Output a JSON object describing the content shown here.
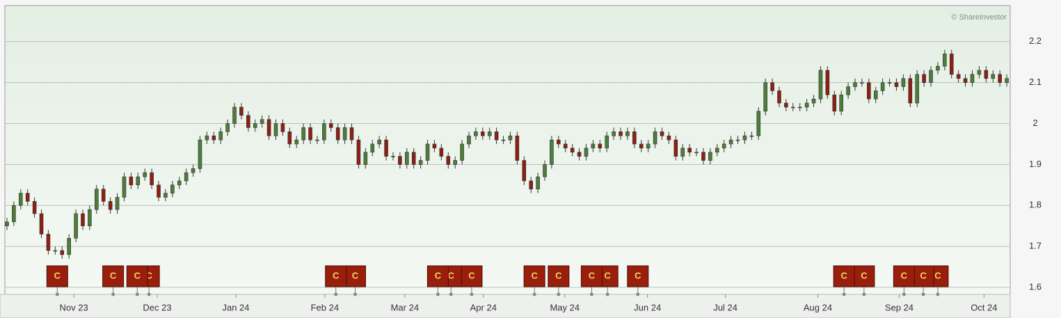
{
  "chart_data": {
    "type": "candlestick",
    "annotation": "© ShareInvestor",
    "up_color": "#4e7d3a",
    "down_color": "#8e1f14",
    "ylim": [
      1.583,
      2.288
    ],
    "yticks": [
      1.6,
      1.7,
      1.8,
      1.9,
      2,
      2.1,
      2.2
    ],
    "grid": true,
    "xlim": [
      -0.3,
      145.5
    ],
    "xticks": [
      {
        "value": 9.7,
        "label": "Nov 23"
      },
      {
        "value": 21.8,
        "label": "Dec 23"
      },
      {
        "value": 33.2,
        "label": "Jan 24"
      },
      {
        "value": 46.1,
        "label": "Feb 24"
      },
      {
        "value": 57.7,
        "label": "Mar 24"
      },
      {
        "value": 69.1,
        "label": "Apr 24"
      },
      {
        "value": 80.9,
        "label": "May 24"
      },
      {
        "value": 92.9,
        "label": "Jun 24"
      },
      {
        "value": 104.2,
        "label": "Jul 24"
      },
      {
        "value": 117.6,
        "label": "Aug 24"
      },
      {
        "value": 129.4,
        "label": "Sep 24"
      },
      {
        "value": 141.7,
        "label": "Oct 24"
      }
    ],
    "open": [
      1.75,
      1.76,
      1.8,
      1.83,
      1.81,
      1.78,
      1.73,
      1.69,
      1.69,
      1.68,
      1.72,
      1.78,
      1.75,
      1.79,
      1.84,
      1.81,
      1.79,
      1.82,
      1.87,
      1.85,
      1.87,
      1.88,
      1.85,
      1.82,
      1.83,
      1.85,
      1.86,
      1.88,
      1.89,
      1.96,
      1.97,
      1.96,
      1.98,
      2.0,
      2.04,
      2.02,
      1.99,
      2.0,
      2.01,
      1.97,
      2.0,
      1.98,
      1.95,
      1.96,
      1.99,
      1.96,
      1.96,
      2.0,
      1.99,
      1.96,
      1.99,
      1.96,
      1.9,
      1.93,
      1.95,
      1.96,
      1.92,
      1.92,
      1.9,
      1.93,
      1.9,
      1.91,
      1.95,
      1.94,
      1.92,
      1.9,
      1.91,
      1.95,
      1.97,
      1.98,
      1.97,
      1.98,
      1.96,
      1.96,
      1.97,
      1.91,
      1.86,
      1.84,
      1.87,
      1.9,
      1.96,
      1.95,
      1.94,
      1.93,
      1.92,
      1.94,
      1.95,
      1.94,
      1.97,
      1.98,
      1.97,
      1.98,
      1.95,
      1.94,
      1.95,
      1.98,
      1.97,
      1.96,
      1.92,
      1.94,
      1.93,
      1.93,
      1.91,
      1.93,
      1.94,
      1.95,
      1.96,
      1.96,
      1.97,
      1.97,
      2.03,
      2.1,
      2.08,
      2.05,
      2.04,
      2.04,
      2.04,
      2.05,
      2.06,
      2.13,
      2.07,
      2.03,
      2.07,
      2.09,
      2.1,
      2.1,
      2.06,
      2.08,
      2.1,
      2.1,
      2.09,
      2.11,
      2.05,
      2.12,
      2.1,
      2.13,
      2.14,
      2.17,
      2.12,
      2.11,
      2.1,
      2.12,
      2.13,
      2.11,
      2.12,
      2.1
    ],
    "high": [
      1.77,
      1.81,
      1.84,
      1.84,
      1.82,
      1.79,
      1.74,
      1.7,
      1.7,
      1.73,
      1.79,
      1.79,
      1.8,
      1.85,
      1.85,
      1.82,
      1.83,
      1.88,
      1.88,
      1.88,
      1.89,
      1.89,
      1.86,
      1.84,
      1.86,
      1.87,
      1.89,
      1.9,
      1.97,
      1.98,
      1.98,
      1.99,
      2.01,
      2.05,
      2.05,
      2.03,
      2.01,
      2.02,
      2.02,
      2.01,
      2.01,
      1.99,
      1.97,
      2.0,
      2.0,
      1.97,
      2.01,
      2.01,
      2.0,
      2.0,
      2.0,
      1.97,
      1.94,
      1.96,
      1.97,
      1.97,
      1.93,
      1.93,
      1.94,
      1.94,
      1.92,
      1.96,
      1.96,
      1.95,
      1.93,
      1.92,
      1.96,
      1.98,
      1.99,
      1.99,
      1.99,
      1.99,
      1.97,
      1.98,
      1.98,
      1.92,
      1.87,
      1.88,
      1.91,
      1.97,
      1.97,
      1.96,
      1.95,
      1.94,
      1.95,
      1.96,
      1.96,
      1.98,
      1.99,
      1.99,
      1.99,
      1.99,
      1.96,
      1.96,
      1.99,
      1.99,
      1.98,
      1.97,
      1.95,
      1.95,
      1.94,
      1.94,
      1.94,
      1.95,
      1.96,
      1.97,
      1.97,
      1.98,
      1.98,
      2.04,
      2.11,
      2.11,
      2.09,
      2.06,
      2.05,
      2.05,
      2.06,
      2.07,
      2.14,
      2.14,
      2.08,
      2.08,
      2.1,
      2.11,
      2.11,
      2.11,
      2.09,
      2.11,
      2.11,
      2.11,
      2.12,
      2.12,
      2.13,
      2.13,
      2.14,
      2.15,
      2.18,
      2.18,
      2.13,
      2.12,
      2.13,
      2.14,
      2.14,
      2.13,
      2.13,
      2.12
    ],
    "low": [
      1.74,
      1.75,
      1.79,
      1.8,
      1.77,
      1.72,
      1.68,
      1.68,
      1.67,
      1.67,
      1.71,
      1.74,
      1.74,
      1.78,
      1.8,
      1.78,
      1.78,
      1.81,
      1.84,
      1.84,
      1.86,
      1.84,
      1.81,
      1.81,
      1.82,
      1.84,
      1.85,
      1.87,
      1.88,
      1.95,
      1.95,
      1.95,
      1.97,
      1.99,
      2.01,
      1.98,
      1.98,
      1.99,
      1.96,
      1.96,
      1.97,
      1.94,
      1.94,
      1.95,
      1.95,
      1.95,
      1.95,
      1.98,
      1.95,
      1.95,
      1.95,
      1.89,
      1.89,
      1.92,
      1.94,
      1.91,
      1.91,
      1.89,
      1.89,
      1.89,
      1.89,
      1.9,
      1.93,
      1.91,
      1.89,
      1.89,
      1.9,
      1.94,
      1.96,
      1.96,
      1.96,
      1.95,
      1.95,
      1.95,
      1.9,
      1.85,
      1.83,
      1.83,
      1.86,
      1.89,
      1.94,
      1.93,
      1.92,
      1.91,
      1.91,
      1.93,
      1.93,
      1.93,
      1.96,
      1.96,
      1.96,
      1.94,
      1.93,
      1.93,
      1.94,
      1.96,
      1.95,
      1.91,
      1.91,
      1.92,
      1.92,
      1.9,
      1.9,
      1.92,
      1.93,
      1.94,
      1.95,
      1.95,
      1.96,
      1.96,
      2.02,
      2.07,
      2.04,
      2.03,
      2.03,
      2.03,
      2.03,
      2.04,
      2.05,
      2.06,
      2.02,
      2.02,
      2.06,
      2.08,
      2.09,
      2.05,
      2.05,
      2.07,
      2.09,
      2.08,
      2.08,
      2.04,
      2.04,
      2.09,
      2.09,
      2.12,
      2.13,
      2.11,
      2.1,
      2.09,
      2.09,
      2.11,
      2.1,
      2.1,
      2.09,
      2.09
    ],
    "close": [
      1.76,
      1.8,
      1.83,
      1.81,
      1.78,
      1.73,
      1.69,
      1.69,
      1.68,
      1.72,
      1.78,
      1.75,
      1.79,
      1.84,
      1.81,
      1.79,
      1.82,
      1.87,
      1.85,
      1.87,
      1.88,
      1.85,
      1.82,
      1.83,
      1.85,
      1.86,
      1.88,
      1.89,
      1.96,
      1.97,
      1.96,
      1.98,
      2.0,
      2.04,
      2.02,
      1.99,
      2.0,
      2.01,
      1.97,
      2.0,
      1.98,
      1.95,
      1.96,
      1.99,
      1.96,
      1.96,
      2.0,
      1.99,
      1.96,
      1.99,
      1.96,
      1.9,
      1.93,
      1.95,
      1.96,
      1.92,
      1.92,
      1.9,
      1.93,
      1.9,
      1.91,
      1.95,
      1.94,
      1.92,
      1.9,
      1.91,
      1.95,
      1.97,
      1.98,
      1.97,
      1.98,
      1.96,
      1.96,
      1.97,
      1.91,
      1.86,
      1.84,
      1.87,
      1.9,
      1.96,
      1.95,
      1.94,
      1.93,
      1.92,
      1.94,
      1.95,
      1.94,
      1.97,
      1.98,
      1.97,
      1.98,
      1.95,
      1.94,
      1.95,
      1.98,
      1.97,
      1.96,
      1.92,
      1.94,
      1.93,
      1.93,
      1.91,
      1.93,
      1.94,
      1.95,
      1.96,
      1.96,
      1.97,
      1.97,
      2.03,
      2.1,
      2.08,
      2.05,
      2.04,
      2.04,
      2.04,
      2.05,
      2.06,
      2.13,
      2.07,
      2.03,
      2.07,
      2.09,
      2.1,
      2.1,
      2.06,
      2.08,
      2.1,
      2.1,
      2.09,
      2.11,
      2.05,
      2.12,
      2.1,
      2.13,
      2.14,
      2.17,
      2.12,
      2.11,
      2.1,
      2.12,
      2.13,
      2.11,
      2.12,
      2.1,
      2.11
    ],
    "events": [
      {
        "x": 7.3,
        "label": "C"
      },
      {
        "x": 15.4,
        "label": "C"
      },
      {
        "x": 18.9,
        "label": "C"
      },
      {
        "x": 20.6,
        "label": "C"
      },
      {
        "x": 47.7,
        "label": "C"
      },
      {
        "x": 50.5,
        "label": "C"
      },
      {
        "x": 62.5,
        "label": "C"
      },
      {
        "x": 64.4,
        "label": "C"
      },
      {
        "x": 67.4,
        "label": "C"
      },
      {
        "x": 76.5,
        "label": "C"
      },
      {
        "x": 80,
        "label": "C"
      },
      {
        "x": 84.8,
        "label": "C"
      },
      {
        "x": 87.1,
        "label": "C"
      },
      {
        "x": 91.5,
        "label": "C"
      },
      {
        "x": 121.4,
        "label": "C"
      },
      {
        "x": 124.3,
        "label": "C"
      },
      {
        "x": 130.1,
        "label": "C"
      },
      {
        "x": 132.9,
        "label": "C"
      },
      {
        "x": 135,
        "label": "C"
      }
    ]
  }
}
